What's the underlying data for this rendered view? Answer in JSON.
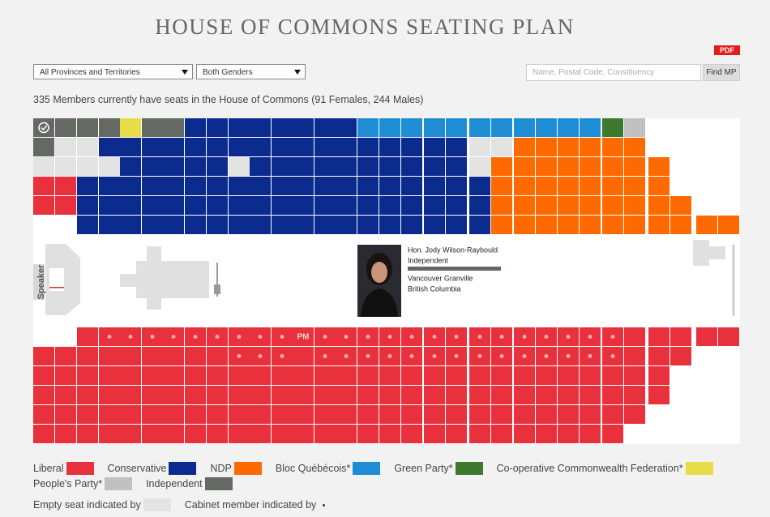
{
  "header": {
    "title": "HOUSE OF COMMONS SEATING PLAN",
    "pdf": "PDF"
  },
  "filters": {
    "province": "All Provinces and Territories",
    "gender": "Both Genders",
    "search_placeholder": "Name, Postal Code, Constituency",
    "button": "Find MP"
  },
  "summary": "335 Members currently have seats in the House of Commons (91 Females, 244 Males)",
  "chamber": {
    "speaker": "Speaker",
    "pm": "PM"
  },
  "member_card": {
    "name": "Hon. Jody Wilson-Raybould",
    "party": "Independent",
    "riding": "Vancouver Granville",
    "province": "British Columbia"
  },
  "legend": [
    {
      "label": "Liberal",
      "color": "#e8313c"
    },
    {
      "label": "Conservative",
      "color": "#0b2b8e"
    },
    {
      "label": "NDP",
      "color": "#ff6a00"
    },
    {
      "label": "Bloc Québécois*",
      "color": "#1e8dd3"
    },
    {
      "label": "Green Party*",
      "color": "#3d7a2f"
    },
    {
      "label": "Co-operative Commonwealth Federation*",
      "color": "#e8dd48"
    },
    {
      "label": "People's Party*",
      "color": "#c0c0c0"
    },
    {
      "label": "Independent",
      "color": "#646964"
    }
  ],
  "notes": {
    "empty_seat": {
      "label": "Empty seat indicated by",
      "color": "#e3e3e3"
    },
    "cabinet": {
      "label": "Cabinet member indicated by"
    }
  }
}
